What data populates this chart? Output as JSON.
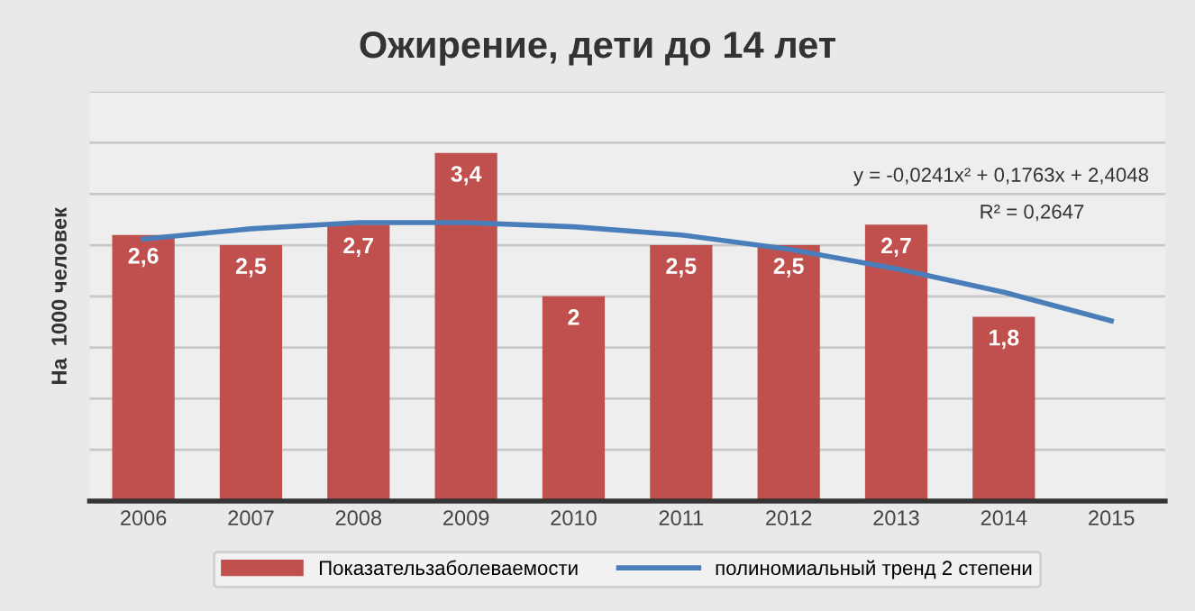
{
  "chart_data": {
    "type": "bar",
    "title": "Ожирение, дети до 14 лет",
    "ylabel": "На  1000 человек",
    "categories": [
      "2006",
      "2007",
      "2008",
      "2009",
      "2010",
      "2011",
      "2012",
      "2013",
      "2014",
      "2015"
    ],
    "series": [
      {
        "name": "Показательзаболеваемости",
        "color": "#c0504d",
        "values": [
          2.6,
          2.5,
          2.7,
          3.4,
          2,
          2.5,
          2.5,
          2.7,
          1.8,
          null
        ],
        "value_labels": [
          "2,6",
          "2,5",
          "2,7",
          "3,4",
          "2",
          "2,5",
          "2,5",
          "2,7",
          "1,8",
          null
        ]
      },
      {
        "name": "полиномиальный тренд 2 степени",
        "type": "line",
        "color": "#4a7ebb",
        "values": [
          2.56,
          2.66,
          2.72,
          2.72,
          2.68,
          2.6,
          2.46,
          2.27,
          2.04,
          1.76
        ]
      }
    ],
    "ylim": [
      0,
      4
    ],
    "yticks": [
      {
        "value": 0,
        "label": null
      },
      {
        "value": 0.5,
        "label": null
      },
      {
        "value": 1,
        "label": null
      },
      {
        "value": 1.5,
        "label": null
      },
      {
        "value": 2,
        "label": null
      },
      {
        "value": 2.5,
        "label": null
      },
      {
        "value": 3,
        "label": null
      },
      {
        "value": 3.5,
        "label": null
      },
      {
        "value": 4,
        "label": null
      }
    ],
    "grid": "y",
    "legend": "bottom",
    "marker": "none",
    "annotations": [
      "y = -0,0241x² + 0,1763x + 2,4048",
      "R² = 0,2647"
    ]
  }
}
